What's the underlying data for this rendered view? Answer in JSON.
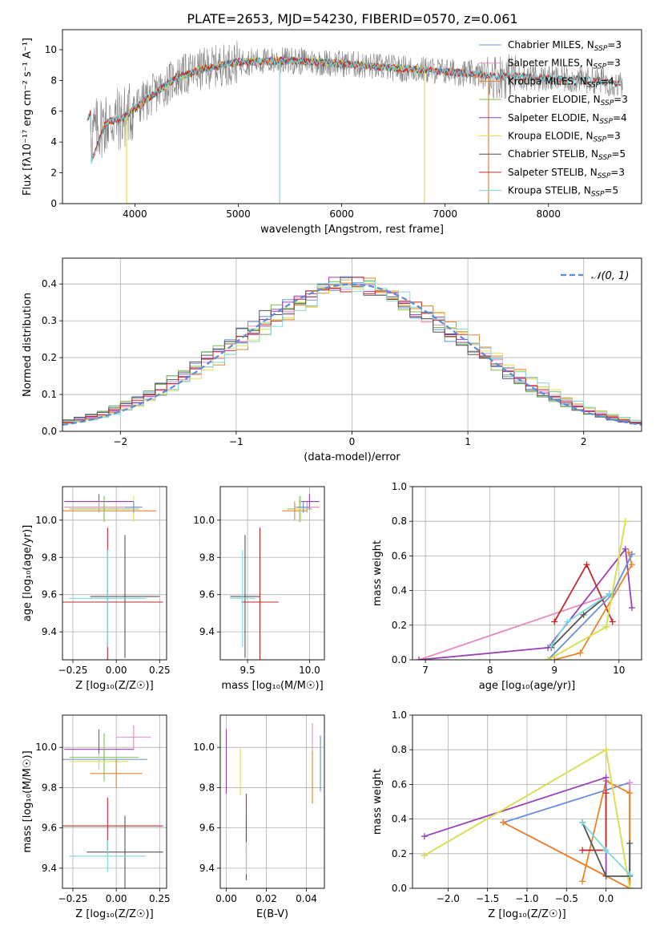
{
  "figure_title": "PLATE=2653, MJD=54230, FIBERID=0570, z=0.061",
  "colors": {
    "ChabrierMILES": "#6a8fd8",
    "SalpeterMILES": "#e88ac0",
    "KroupaMILES": "#e8832a",
    "ChabrierELODIE": "#7cc04a",
    "SalpeterELODIE": "#9b3fb5",
    "KroupaELODIE": "#e0e050",
    "ChabrierSTELIB": "#555555",
    "SalpeterSTELIB": "#c22a2a",
    "KroupaSTELIB": "#7dd8e0",
    "data": "#808080",
    "normal": "#5b8bd8"
  },
  "chart_data": [
    {
      "id": "spectrum",
      "type": "line",
      "xlabel": "wavelength [Angstrom, rest frame]",
      "ylabel": "Flux [fλ10⁻¹⁷ erg cm⁻² s⁻¹ A⁻¹]",
      "xlim": [
        3300,
        8900
      ],
      "ylim": [
        0,
        11.3
      ],
      "xticks": [
        4000,
        5000,
        6000,
        7000,
        8000
      ],
      "yticks": [
        0,
        2,
        4,
        6,
        8,
        10
      ],
      "grid": false,
      "legend_position": "upper-right",
      "legend": [
        {
          "label": "Chabrier MILES, N",
          "sub": "SSP",
          "post": "=3",
          "color_key": "ChabrierMILES"
        },
        {
          "label": "Salpeter MILES, N",
          "sub": "SSP",
          "post": "=3",
          "color_key": "SalpeterMILES"
        },
        {
          "label": "Kroupa MILES, N",
          "sub": "SSP",
          "post": "=4",
          "color_key": "KroupaMILES"
        },
        {
          "label": "Chabrier ELODIE, N",
          "sub": "SSP",
          "post": "=3",
          "color_key": "ChabrierELODIE"
        },
        {
          "label": "Salpeter ELODIE, N",
          "sub": "SSP",
          "post": "=4",
          "color_key": "SalpeterELODIE"
        },
        {
          "label": "Kroupa ELODIE, N",
          "sub": "SSP",
          "post": "=3",
          "color_key": "KroupaELODIE"
        },
        {
          "label": "Chabrier STELIB, N",
          "sub": "SSP",
          "post": "=5",
          "color_key": "ChabrierSTELIB"
        },
        {
          "label": "Salpeter STELIB, N",
          "sub": "SSP",
          "post": "=3",
          "color_key": "SalpeterSTELIB"
        },
        {
          "label": "Kroupa STELIB, N",
          "sub": "SSP",
          "post": "=5",
          "color_key": "KroupaSTELIB"
        }
      ],
      "continuum": [
        [
          3580,
          4.5
        ],
        [
          3700,
          5.2
        ],
        [
          3900,
          5.6
        ],
        [
          4000,
          6.2
        ],
        [
          4200,
          7.2
        ],
        [
          4400,
          8.2
        ],
        [
          4700,
          8.8
        ],
        [
          5000,
          9.2
        ],
        [
          5500,
          9.3
        ],
        [
          6000,
          9.1
        ],
        [
          6500,
          8.8
        ],
        [
          7000,
          8.6
        ],
        [
          7440,
          8.3
        ],
        [
          7600,
          8.3
        ],
        [
          8000,
          8.1
        ],
        [
          8500,
          8.0
        ],
        [
          8700,
          7.7
        ]
      ],
      "model_ranges": [
        {
          "key": "ChabrierMILES",
          "x": [
            3540,
            7420
          ]
        },
        {
          "key": "SalpeterMILES",
          "x": [
            3540,
            7420
          ]
        },
        {
          "key": "KroupaMILES",
          "x": [
            3540,
            7420
          ]
        },
        {
          "key": "ChabrierELODIE",
          "x": [
            3900,
            6800
          ]
        },
        {
          "key": "SalpeterELODIE",
          "x": [
            3900,
            6800
          ]
        },
        {
          "key": "KroupaELODIE",
          "x": [
            3900,
            6800
          ]
        },
        {
          "key": "ChabrierSTELIB",
          "x": [
            3540,
            8700
          ]
        },
        {
          "key": "SalpeterSTELIB",
          "x": [
            3540,
            8700
          ]
        },
        {
          "key": "KroupaSTELIB",
          "x": [
            3540,
            8700
          ]
        }
      ]
    },
    {
      "id": "residual_hist",
      "type": "histogram",
      "xlabel": "(data-model)/error",
      "ylabel": "Normed distribution",
      "xlim": [
        -2.5,
        2.5
      ],
      "ylim": [
        0,
        0.47
      ],
      "xticks": [
        -2,
        -1,
        0,
        1,
        2
      ],
      "xticklabels": [
        "−2",
        "−1",
        "0",
        "1",
        "2"
      ],
      "yticks": [
        0.0,
        0.1,
        0.2,
        0.3,
        0.4
      ],
      "yticklabels": [
        "0.0",
        "0.1",
        "0.2",
        "0.3",
        "0.4"
      ],
      "grid": true,
      "legend_position": "upper-right",
      "legend_label": "𝒩(0, 1)",
      "normal_curve": {
        "mu": 0,
        "sigma": 1,
        "style": "dashed"
      },
      "bin_width": 0.1
    },
    {
      "id": "age_vs_Z",
      "type": "errorbar",
      "xlabel": "Z [log₁₀(Z/Z☉)]",
      "ylabel": "age  [log₁₀(age/yr)]",
      "xlim": [
        -0.31,
        0.29
      ],
      "ylim": [
        9.25,
        10.18
      ],
      "xticks": [
        -0.25,
        0.0,
        0.25
      ],
      "xticklabels": [
        "−0.25",
        "0.00",
        "0.25"
      ],
      "yticks": [
        9.4,
        9.6,
        9.8,
        10.0
      ],
      "yticklabels": [
        "9.4",
        "9.6",
        "9.8",
        "10.0"
      ],
      "grid": true,
      "points": [
        {
          "key": "SalpeterELODIE",
          "x": -0.1,
          "xerr": 0.2,
          "y": 10.1,
          "yerr": 0.04
        },
        {
          "key": "SalpeterMILES",
          "x": -0.1,
          "xerr": 0.2,
          "y": 10.07,
          "yerr": 0.03
        },
        {
          "key": "KroupaMILES",
          "x": -0.07,
          "xerr": 0.3,
          "y": 10.05,
          "yerr": 0.05
        },
        {
          "key": "ChabrierELODIE",
          "x": -0.07,
          "xerr": 0.2,
          "y": 10.06,
          "yerr": 0.07
        },
        {
          "key": "KroupaELODIE",
          "x": 0.1,
          "xerr": 0.01,
          "y": 10.06,
          "yerr": 0.07
        },
        {
          "key": "ChabrierMILES",
          "x": 0.1,
          "xerr": 0.05,
          "y": 10.07,
          "yerr": 0.03
        },
        {
          "key": "ChabrierSTELIB",
          "x": 0.05,
          "xerr": 0.2,
          "y": 9.59,
          "yerr": 0.33
        },
        {
          "key": "SalpeterSTELIB",
          "x": -0.05,
          "xerr": 0.32,
          "y": 9.56,
          "yerr": 0.4
        },
        {
          "key": "KroupaSTELIB",
          "x": -0.05,
          "xerr": 0.22,
          "y": 9.58,
          "yerr": 0.26
        }
      ]
    },
    {
      "id": "age_vs_mass",
      "type": "errorbar",
      "xlabel": "mass [log₁₀(M/M☉)]",
      "ylabel": "",
      "xlim": [
        9.28,
        10.12
      ],
      "ylim": [
        9.25,
        10.18
      ],
      "xticks": [
        9.5,
        10.0
      ],
      "xticklabels": [
        "9.5",
        "10.0"
      ],
      "yticks": [
        9.4,
        9.6,
        9.8,
        10.0
      ],
      "yticklabels": [
        "9.4",
        "9.6",
        "9.8",
        "10.0"
      ],
      "grid": true,
      "points": [
        {
          "key": "SalpeterELODIE",
          "x": 10.0,
          "xerr": 0.08,
          "y": 10.1,
          "yerr": 0.04
        },
        {
          "key": "SalpeterMILES",
          "x": 9.98,
          "xerr": 0.1,
          "y": 10.07,
          "yerr": 0.03
        },
        {
          "key": "KroupaMILES",
          "x": 9.88,
          "xerr": 0.1,
          "y": 10.05,
          "yerr": 0.05
        },
        {
          "key": "ChabrierELODIE",
          "x": 9.92,
          "xerr": 0.1,
          "y": 10.06,
          "yerr": 0.07
        },
        {
          "key": "KroupaELODIE",
          "x": 9.93,
          "xerr": 0.04,
          "y": 10.06,
          "yerr": 0.07
        },
        {
          "key": "ChabrierMILES",
          "x": 9.95,
          "xerr": 0.05,
          "y": 10.07,
          "yerr": 0.03
        },
        {
          "key": "ChabrierSTELIB",
          "x": 9.48,
          "xerr": 0.12,
          "y": 9.59,
          "yerr": 0.33
        },
        {
          "key": "SalpeterSTELIB",
          "x": 9.6,
          "xerr": 0.15,
          "y": 9.56,
          "yerr": 0.4
        },
        {
          "key": "KroupaSTELIB",
          "x": 9.46,
          "xerr": 0.1,
          "y": 9.58,
          "yerr": 0.26
        }
      ]
    },
    {
      "id": "weight_vs_age",
      "type": "line",
      "xlabel": "age  [log₁₀(age/yr)]",
      "ylabel": "mass weight",
      "xlim": [
        6.8,
        10.35
      ],
      "ylim": [
        0,
        1.0
      ],
      "xticks": [
        7,
        8,
        9,
        10
      ],
      "xticklabels": [
        "7",
        "8",
        "9",
        "10"
      ],
      "yticks": [
        0.0,
        0.2,
        0.4,
        0.6,
        0.8,
        1.0
      ],
      "yticklabels": [
        "0.0",
        "0.2",
        "0.4",
        "0.6",
        "0.8",
        "1.0"
      ],
      "grid": true,
      "series": [
        {
          "key": "SalpeterMILES",
          "x": [
            6.9,
            9.9,
            10.2
          ],
          "y": [
            0.0,
            0.38,
            0.61
          ]
        },
        {
          "key": "SalpeterELODIE",
          "x": [
            6.9,
            8.9,
            10.1,
            10.2
          ],
          "y": [
            0.0,
            0.07,
            0.64,
            0.3
          ]
        },
        {
          "key": "SalpeterSTELIB",
          "x": [
            9.0,
            9.5,
            9.9
          ],
          "y": [
            0.22,
            0.55,
            0.22
          ]
        },
        {
          "key": "KroupaMILES",
          "x": [
            9.0,
            9.4,
            10.2,
            10.15
          ],
          "y": [
            0.0,
            0.04,
            0.55,
            0.62
          ]
        },
        {
          "key": "ChabrierMILES",
          "x": [
            8.9,
            9.9,
            10.2
          ],
          "y": [
            0.0,
            0.38,
            0.61
          ]
        },
        {
          "key": "ChabrierELODIE",
          "x": [
            8.9,
            9.8,
            10.1
          ],
          "y": [
            0.0,
            0.19,
            0.8
          ]
        },
        {
          "key": "KroupaELODIE",
          "x": [
            8.9,
            9.8,
            10.1
          ],
          "y": [
            0.0,
            0.19,
            0.8
          ]
        },
        {
          "key": "ChabrierSTELIB",
          "x": [
            8.95,
            9.45,
            9.85
          ],
          "y": [
            0.07,
            0.26,
            0.38
          ]
        },
        {
          "key": "KroupaSTELIB",
          "x": [
            8.95,
            9.2,
            9.85
          ],
          "y": [
            0.08,
            0.22,
            0.38
          ]
        }
      ]
    },
    {
      "id": "mass_vs_Z",
      "type": "errorbar",
      "xlabel": "Z [log₁₀(Z/Z☉)]",
      "ylabel": "mass [log₁₀(M/M☉)]",
      "xlim": [
        -0.31,
        0.29
      ],
      "ylim": [
        9.3,
        10.16
      ],
      "xticks": [
        -0.25,
        0.0,
        0.25
      ],
      "xticklabels": [
        "−0.25",
        "0.00",
        "0.25"
      ],
      "yticks": [
        9.4,
        9.6,
        9.8,
        10.0
      ],
      "yticklabels": [
        "9.4",
        "9.6",
        "9.8",
        "10.0"
      ],
      "grid": true,
      "points": [
        {
          "key": "SalpeterMILES",
          "x": 0.1,
          "xerr": 0.1,
          "y": 10.05,
          "yerr": 0.06
        },
        {
          "key": "SalpeterELODIE",
          "x": -0.1,
          "xerr": 0.2,
          "y": 9.99,
          "yerr": 0.1
        },
        {
          "key": "ChabrierMILES",
          "x": -0.07,
          "xerr": 0.25,
          "y": 9.94,
          "yerr": 0.06
        },
        {
          "key": "ChabrierELODIE",
          "x": -0.07,
          "xerr": 0.2,
          "y": 9.95,
          "yerr": 0.12
        },
        {
          "key": "KroupaELODIE",
          "x": -0.1,
          "xerr": 0.17,
          "y": 9.93,
          "yerr": 0.04
        },
        {
          "key": "KroupaMILES",
          "x": 0.0,
          "xerr": 0.15,
          "y": 9.87,
          "yerr": 0.07
        },
        {
          "key": "SalpeterSTELIB",
          "x": -0.05,
          "xerr": 0.32,
          "y": 9.61,
          "yerr": 0.14
        },
        {
          "key": "ChabrierSTELIB",
          "x": 0.05,
          "xerr": 0.22,
          "y": 9.48,
          "yerr": 0.18
        },
        {
          "key": "KroupaSTELIB",
          "x": -0.05,
          "xerr": 0.22,
          "y": 9.46,
          "yerr": 0.08
        }
      ]
    },
    {
      "id": "mass_vs_ebv",
      "type": "errorbar",
      "xlabel": "E(B-V)",
      "ylabel": "",
      "xlim": [
        -0.003,
        0.049
      ],
      "ylim": [
        9.3,
        10.16
      ],
      "xticks": [
        0.0,
        0.02,
        0.04
      ],
      "xticklabels": [
        "0.00",
        "0.02",
        "0.04"
      ],
      "yticks": [
        9.4,
        9.6,
        9.8,
        10.0
      ],
      "yticklabels": [
        "9.4",
        "9.6",
        "9.8",
        "10.0"
      ],
      "grid": true,
      "points": [
        {
          "key": "SalpeterELODIE",
          "x": 0.0,
          "y": 9.93,
          "yerr": 0.16
        },
        {
          "key": "KroupaELODIE",
          "x": 0.007,
          "y": 9.88,
          "yerr": 0.12
        },
        {
          "key": "SalpeterSTELIB",
          "x": 0.01,
          "y": 9.62,
          "yerr": 0.15
        },
        {
          "key": "ChabrierSTELIB",
          "x": 0.01,
          "y": 9.5,
          "yerr": 0.16
        },
        {
          "key": "KroupaSTELIB",
          "x": 0.01,
          "y": 9.45,
          "yerr": 0.08
        },
        {
          "key": "SalpeterMILES",
          "x": 0.043,
          "y": 10.04,
          "yerr": 0.08
        },
        {
          "key": "KroupaMILES",
          "x": 0.043,
          "y": 9.85,
          "yerr": 0.13
        },
        {
          "key": "ChabrierMILES",
          "x": 0.047,
          "y": 9.92,
          "yerr": 0.14
        }
      ]
    },
    {
      "id": "weight_vs_Z",
      "type": "line",
      "xlabel": "Z [log₁₀(Z/Z☉)]",
      "ylabel": "mass weight",
      "xlim": [
        -2.45,
        0.45
      ],
      "ylim": [
        0,
        1.0
      ],
      "xticks": [
        -2.0,
        -1.5,
        -1.0,
        -0.5,
        0.0
      ],
      "xticklabels": [
        "−2.0",
        "−1.5",
        "−1.0",
        "−0.5",
        "0.0"
      ],
      "yticks": [
        0.0,
        0.2,
        0.4,
        0.6,
        0.8,
        1.0
      ],
      "yticklabels": [
        "0.0",
        "0.2",
        "0.4",
        "0.6",
        "0.8",
        "1.0"
      ],
      "grid": true,
      "series": [
        {
          "key": "ChabrierMILES",
          "x": [
            -1.3,
            0.3,
            0.3
          ],
          "y": [
            0.38,
            0.61,
            0.0
          ]
        },
        {
          "key": "SalpeterMILES",
          "x": [
            -1.3,
            0.3,
            0.3
          ],
          "y": [
            0.38,
            0.0,
            0.61
          ]
        },
        {
          "key": "KroupaMILES",
          "x": [
            -1.3,
            0.3,
            0.3,
            0.0,
            -0.3
          ],
          "y": [
            0.38,
            0.0,
            0.55,
            0.62,
            0.04
          ]
        },
        {
          "key": "SalpeterELODIE",
          "x": [
            -2.3,
            0.0,
            0.0
          ],
          "y": [
            0.3,
            0.64,
            0.07
          ]
        },
        {
          "key": "ChabrierELODIE",
          "x": [
            -2.3,
            0.0,
            0.3
          ],
          "y": [
            0.19,
            0.8,
            0.0
          ]
        },
        {
          "key": "KroupaELODIE",
          "x": [
            -2.3,
            0.0,
            0.3
          ],
          "y": [
            0.19,
            0.8,
            0.0
          ]
        },
        {
          "key": "SalpeterSTELIB",
          "x": [
            -0.3,
            0.0,
            0.0
          ],
          "y": [
            0.22,
            0.22,
            0.55
          ]
        },
        {
          "key": "ChabrierSTELIB",
          "x": [
            -0.3,
            0.0,
            0.3,
            0.3
          ],
          "y": [
            0.38,
            0.07,
            0.07,
            0.26
          ]
        },
        {
          "key": "KroupaSTELIB",
          "x": [
            -0.3,
            0.0,
            0.3
          ],
          "y": [
            0.38,
            0.22,
            0.08
          ]
        }
      ]
    }
  ]
}
